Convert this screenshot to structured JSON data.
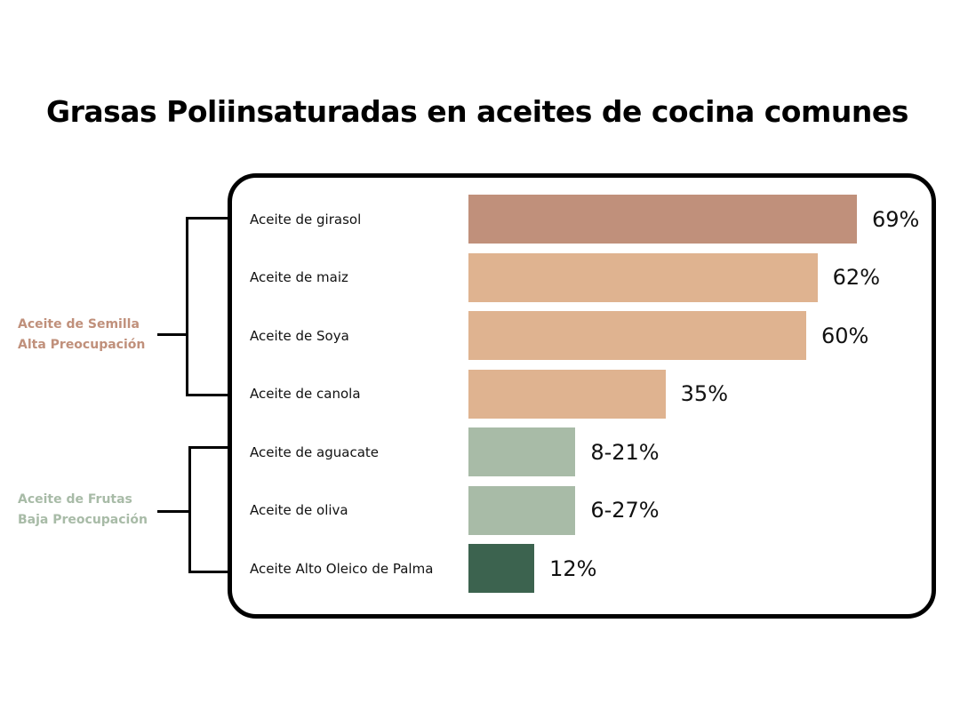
{
  "chart_data": {
    "type": "bar",
    "orientation": "horizontal",
    "title": "Grasas Poliinsaturadas en aceites de cocina comunes",
    "xlabel": "",
    "ylabel": "",
    "xlim": [
      0,
      69
    ],
    "grid": false,
    "categories": [
      "Aceite de girasol",
      "Aceite de maiz",
      "Aceite de Soya",
      "Aceite de canola",
      "Aceite de aguacate",
      "Aceite de oliva",
      "Aceite Alto Oleico de Palma"
    ],
    "values": [
      69,
      62,
      60,
      35,
      19,
      19,
      11.7
    ],
    "value_labels": [
      "69%",
      "62%",
      "60%",
      "35%",
      "8-21%",
      "6-27%",
      "12%"
    ],
    "colors": [
      "#c0907b",
      "#dfb390",
      "#dfb390",
      "#dfb390",
      "#a8bba7",
      "#a8bba7",
      "#3c634f"
    ],
    "groups": [
      {
        "line1": "Aceite de Semilla",
        "line2": "Alta Preocupación",
        "color": "#c0907b",
        "members": [
          0,
          1,
          2,
          3
        ]
      },
      {
        "line1": "Aceite de Frutas",
        "line2": "Baja Preocupación",
        "color": "#a8bba7",
        "members": [
          4,
          5,
          6
        ]
      }
    ]
  }
}
